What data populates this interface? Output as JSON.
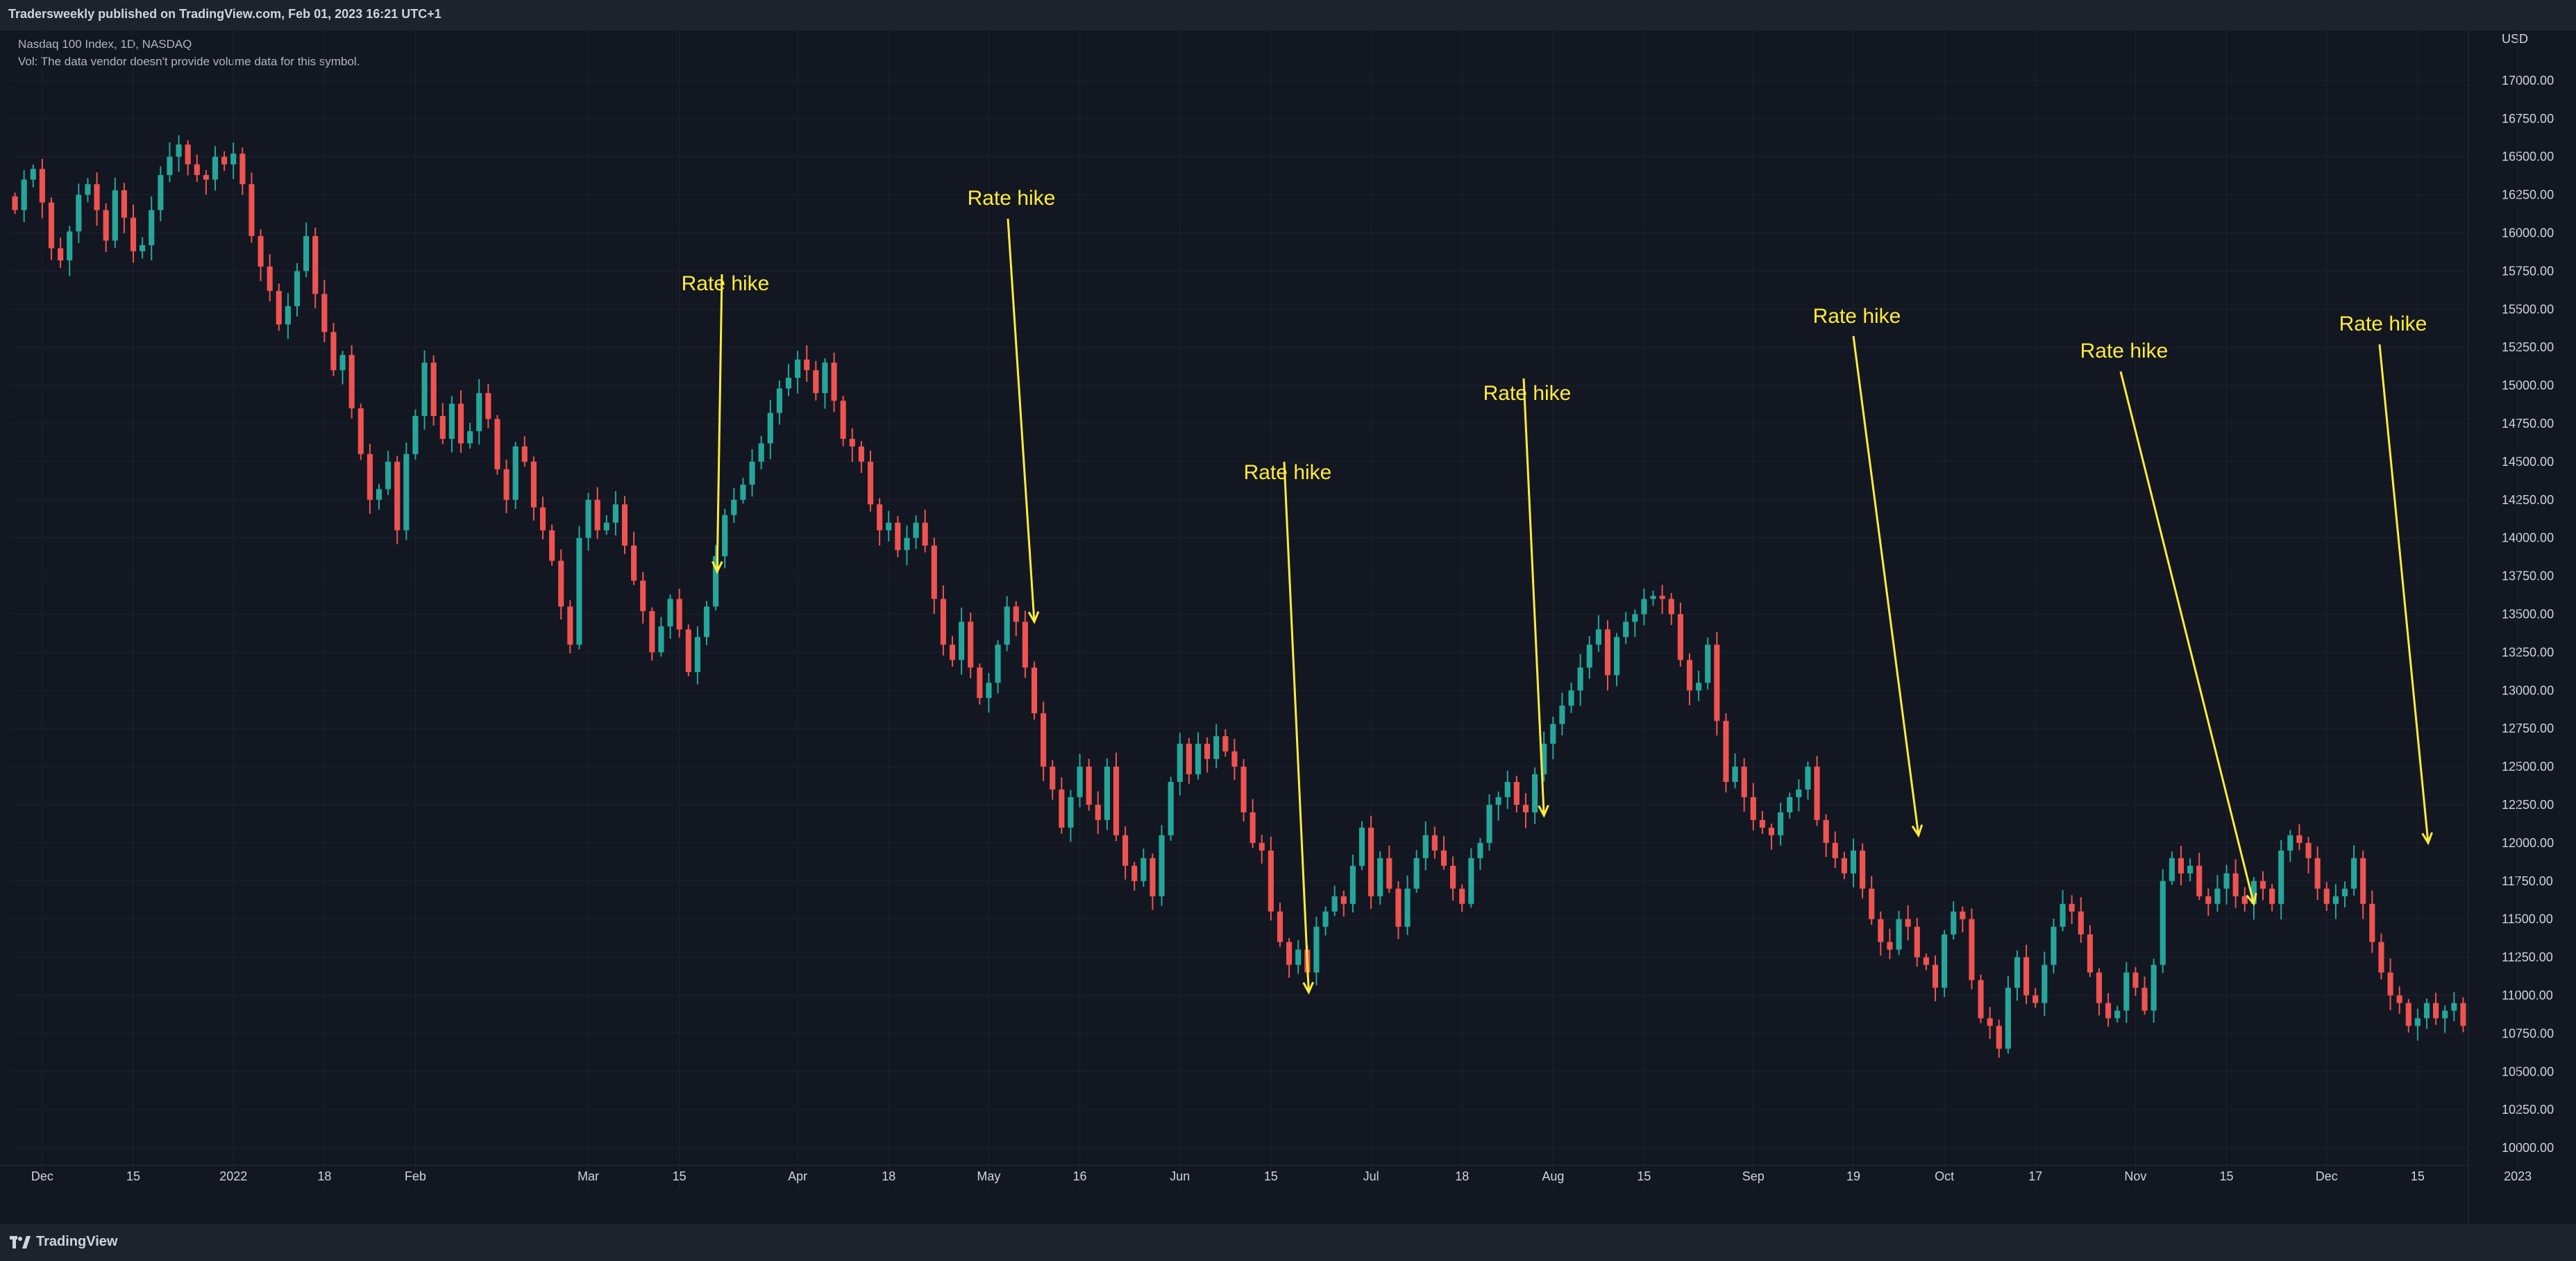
{
  "header": {
    "title": "Tradersweekly published on TradingView.com, Feb 01, 2023 16:21 UTC+1"
  },
  "legend": {
    "symbol": "Nasdaq 100 Index, 1D, NASDAQ",
    "volume_note": "Vol: The data vendor doesn't provide volume data for this symbol."
  },
  "footer": {
    "brand": "TradingView"
  },
  "colors": {
    "up": "#26a69a",
    "down": "#ef5350",
    "annotation": "#ffeb3b",
    "background": "#131722",
    "grid": "#1e2230"
  },
  "chart_data": {
    "type": "candlestick",
    "currency": "USD",
    "y_ticks": [
      "10000.00",
      "10250.00",
      "10500.00",
      "10750.00",
      "11000.00",
      "11250.00",
      "11500.00",
      "11750.00",
      "12000.00",
      "12250.00",
      "12500.00",
      "12750.00",
      "13000.00",
      "13250.00",
      "13500.00",
      "13750.00",
      "14000.00",
      "14250.00",
      "14500.00",
      "14750.00",
      "15000.00",
      "15250.00",
      "15500.00",
      "15750.00",
      "16000.00",
      "16250.00",
      "16500.00",
      "16750.00",
      "17000.00"
    ],
    "ylim": [
      9850,
      17200
    ],
    "x_ticks": [
      {
        "label": "Dec",
        "index": 3
      },
      {
        "label": "15",
        "index": 13
      },
      {
        "label": "2022",
        "index": 24
      },
      {
        "label": "18",
        "index": 34
      },
      {
        "label": "Feb",
        "index": 44
      },
      {
        "label": "Mar",
        "index": 63
      },
      {
        "label": "15",
        "index": 73
      },
      {
        "label": "Apr",
        "index": 86
      },
      {
        "label": "18",
        "index": 96
      },
      {
        "label": "May",
        "index": 107
      },
      {
        "label": "16",
        "index": 117
      },
      {
        "label": "Jun",
        "index": 128
      },
      {
        "label": "15",
        "index": 138
      },
      {
        "label": "Jul",
        "index": 149
      },
      {
        "label": "18",
        "index": 159
      },
      {
        "label": "Aug",
        "index": 169
      },
      {
        "label": "15",
        "index": 179
      },
      {
        "label": "Sep",
        "index": 191
      },
      {
        "label": "19",
        "index": 202
      },
      {
        "label": "Oct",
        "index": 212
      },
      {
        "label": "17",
        "index": 222
      },
      {
        "label": "Nov",
        "index": 233
      },
      {
        "label": "15",
        "index": 243
      },
      {
        "label": "Dec",
        "index": 254
      },
      {
        "label": "15",
        "index": 264
      },
      {
        "label": "2023",
        "index": 275
      }
    ],
    "closes": [
      16150,
      16350,
      16420,
      16200,
      15900,
      15820,
      16010,
      16250,
      16320,
      16150,
      15950,
      16280,
      16100,
      15880,
      15920,
      16150,
      16380,
      16500,
      16580,
      16450,
      16380,
      16350,
      16500,
      16450,
      16520,
      16320,
      15980,
      15780,
      15620,
      15400,
      15520,
      15750,
      15980,
      15600,
      15350,
      15100,
      15200,
      14850,
      14550,
      14250,
      14320,
      14500,
      14050,
      14550,
      14800,
      15150,
      14800,
      14650,
      14880,
      14620,
      14700,
      14950,
      14780,
      14450,
      14250,
      14600,
      14500,
      14200,
      14050,
      13850,
      13550,
      13300,
      14000,
      14250,
      14050,
      14100,
      14220,
      13950,
      13720,
      13520,
      13250,
      13420,
      13600,
      13400,
      13120,
      13350,
      13550,
      13880,
      14150,
      14250,
      14350,
      14500,
      14620,
      14820,
      14980,
      15050,
      15170,
      15100,
      14950,
      15150,
      14900,
      14650,
      14600,
      14500,
      14220,
      14050,
      14100,
      13920,
      14000,
      14100,
      13950,
      13600,
      13300,
      13200,
      13450,
      13150,
      12950,
      13050,
      13300,
      13550,
      13450,
      13150,
      12850,
      12500,
      12350,
      12100,
      12300,
      12500,
      12250,
      12150,
      12500,
      12050,
      11850,
      11750,
      11900,
      11650,
      12050,
      12400,
      12650,
      12450,
      12650,
      12550,
      12700,
      12600,
      12500,
      12200,
      12000,
      11950,
      11550,
      11350,
      11200,
      11300,
      11150,
      11450,
      11550,
      11650,
      11600,
      11850,
      12100,
      11650,
      11900,
      11700,
      11450,
      11700,
      11900,
      12050,
      11950,
      11850,
      11700,
      11600,
      11900,
      12000,
      12250,
      12300,
      12400,
      12250,
      12200,
      12450,
      12650,
      12780,
      12900,
      13000,
      13150,
      13300,
      13400,
      13100,
      13350,
      13450,
      13500,
      13600,
      13620,
      13600,
      13500,
      13200,
      13000,
      13050,
      13300,
      12800,
      12400,
      12500,
      12300,
      12150,
      12100,
      12050,
      12200,
      12300,
      12350,
      12500,
      12150,
      12000,
      11900,
      11800,
      11950,
      11700,
      11500,
      11350,
      11300,
      11500,
      11450,
      11250,
      11200,
      11050,
      11400,
      11550,
      11500,
      11100,
      10850,
      10800,
      10650,
      11050,
      11250,
      11000,
      10950,
      11200,
      11450,
      11600,
      11550,
      11400,
      11150,
      10950,
      10850,
      10900,
      11150,
      11050,
      10900,
      11200,
      11750,
      11900,
      11800,
      11850,
      11650,
      11600,
      11700,
      11800,
      11650,
      11600,
      11750,
      11700,
      11600,
      11950,
      12050,
      12000,
      11900,
      11700,
      11600,
      11650,
      11700,
      11900,
      11600,
      11350,
      11150,
      11000,
      10950,
      10800,
      10850,
      10950,
      10850,
      10900,
      10950,
      10800
    ]
  },
  "annotations": [
    {
      "label": "Rate hike"
    },
    {
      "label": "Rate hike"
    },
    {
      "label": "Rate hike"
    },
    {
      "label": "Rate hike"
    },
    {
      "label": "Rate hike"
    },
    {
      "label": "Rate hike"
    },
    {
      "label": "Rate hike"
    }
  ]
}
